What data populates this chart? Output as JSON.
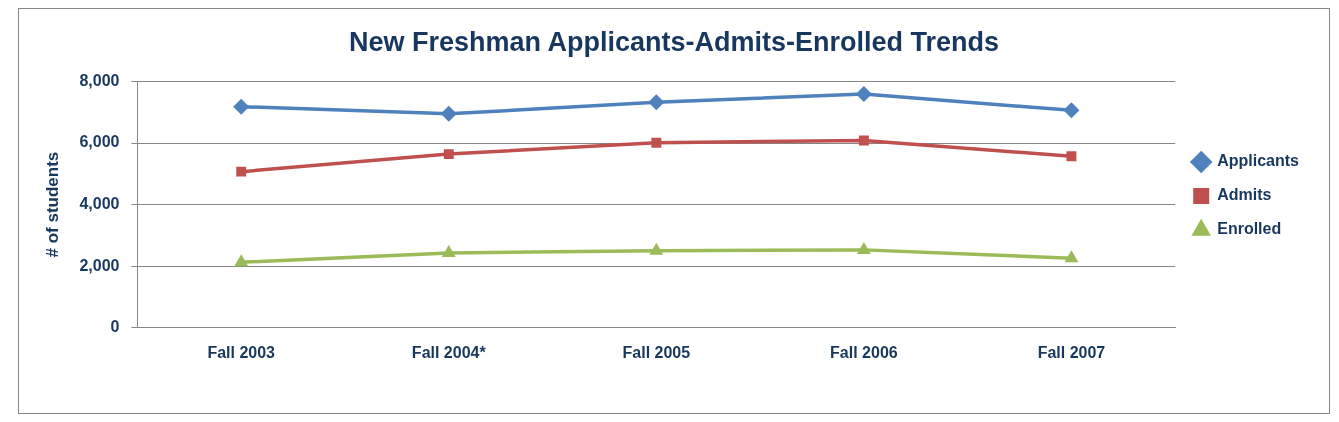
{
  "chart_data": {
    "type": "line",
    "title": "New Freshman Applicants-Admits-Enrolled Trends",
    "ylabel": "# of students",
    "categories": [
      "Fall 2003",
      "Fall 2004*",
      "Fall 2005",
      "Fall 2006",
      "Fall 2007"
    ],
    "series": [
      {
        "name": "Applicants",
        "color": "#4f81bd",
        "marker": "diamond",
        "values": [
          7180,
          6950,
          7320,
          7590,
          7060
        ]
      },
      {
        "name": "Admits",
        "color": "#c0504d",
        "marker": "square",
        "values": [
          5070,
          5640,
          6010,
          6080,
          5570
        ]
      },
      {
        "name": "Enrolled",
        "color": "#9bbb59",
        "marker": "triangle",
        "values": [
          2130,
          2430,
          2500,
          2530,
          2260
        ]
      }
    ],
    "ylim": [
      0,
      8000
    ],
    "yticks": [
      {
        "value": 0,
        "label": "0"
      },
      {
        "value": 2000,
        "label": "2,000"
      },
      {
        "value": 4000,
        "label": "4,000"
      },
      {
        "value": 6000,
        "label": "6,000"
      },
      {
        "value": 8000,
        "label": "8,000"
      }
    ],
    "grid": "y",
    "legend": "right",
    "line_style": "solid"
  }
}
